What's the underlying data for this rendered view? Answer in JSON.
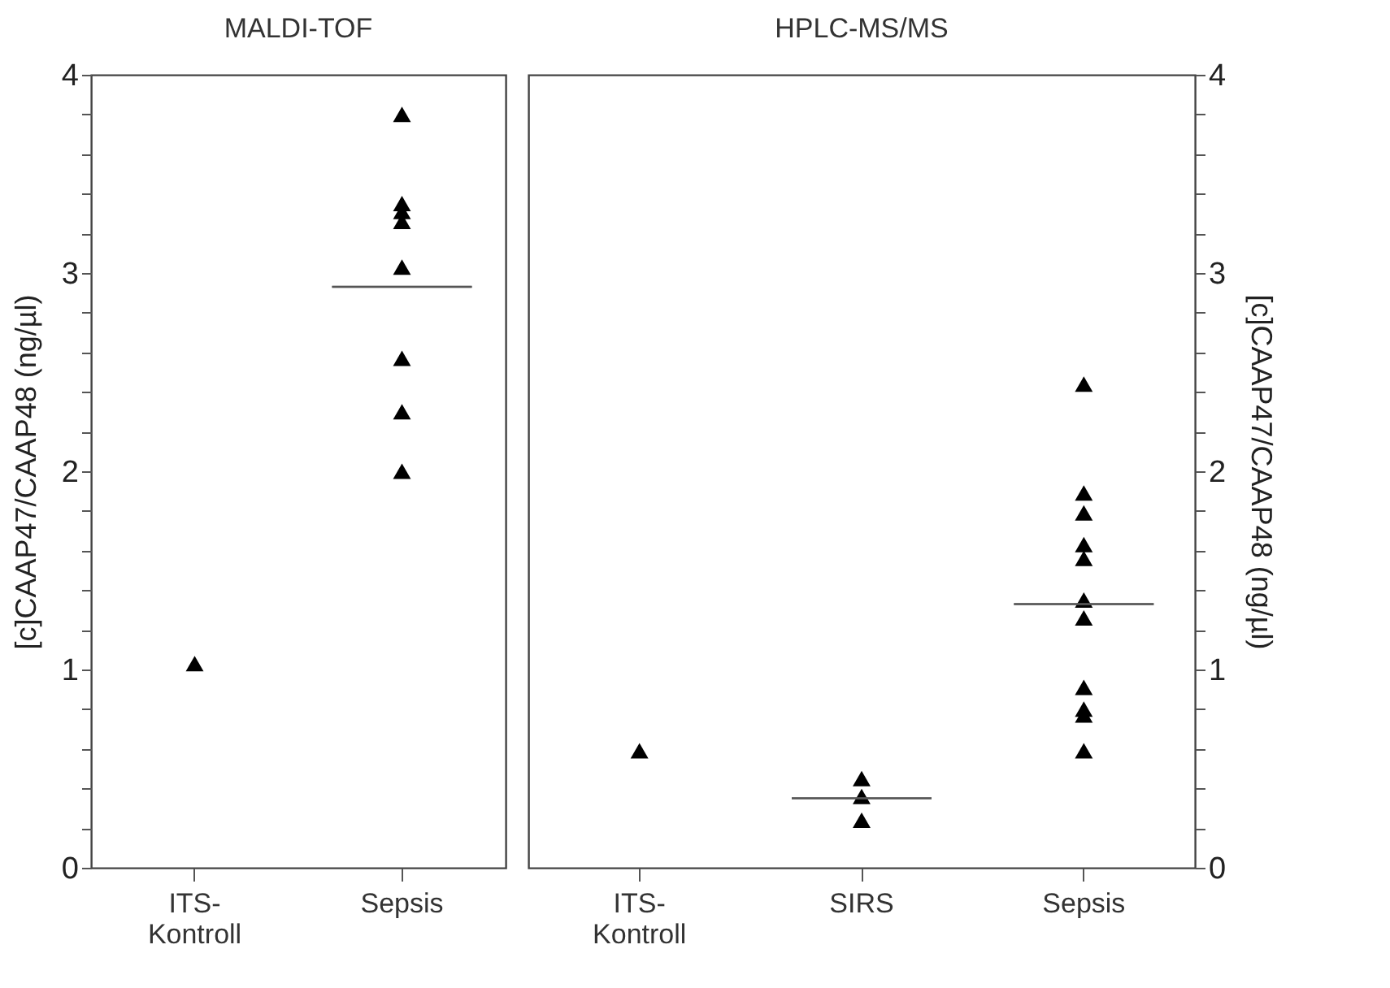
{
  "chart_data": [
    {
      "type": "scatter",
      "title": "MALDI-TOF",
      "ylabel": "[c]CAAP47/CAAP48 (ng/µl)",
      "categories": [
        "ITS-\nKontroll",
        "Sepsis"
      ],
      "ylim": [
        0,
        4
      ],
      "yticks": [
        0,
        {
          "value": 0.2,
          "label": null
        },
        {
          "value": 0.4,
          "label": null
        },
        {
          "value": 0.6,
          "label": null
        },
        {
          "value": 0.8,
          "label": null
        },
        1,
        {
          "value": 1.2,
          "label": null
        },
        {
          "value": 1.4,
          "label": null
        },
        {
          "value": 1.6,
          "label": null
        },
        {
          "value": 1.8,
          "label": null
        },
        2,
        {
          "value": 2.2,
          "label": null
        },
        {
          "value": 2.4,
          "label": null
        },
        {
          "value": 2.6,
          "label": null
        },
        {
          "value": 2.8,
          "label": null
        },
        3,
        {
          "value": 3.2,
          "label": null
        },
        {
          "value": 3.4,
          "label": null
        },
        {
          "value": 3.6,
          "label": null
        },
        {
          "value": 3.8,
          "label": null
        },
        4
      ],
      "marker": "triangle",
      "grid": false,
      "series": [
        {
          "color": "#000000",
          "x": [
            "ITS-\nKontroll",
            "Sepsis",
            "Sepsis",
            "Sepsis",
            "Sepsis",
            "Sepsis",
            "Sepsis",
            "Sepsis",
            "Sepsis"
          ],
          "values": [
            1.03,
            3.8,
            3.35,
            3.31,
            3.26,
            3.03,
            2.57,
            2.3,
            2.0
          ]
        },
        {
          "type": "box",
          "color": "#555555",
          "boxes": [
            null,
            {
              "low": 2.93,
              "q1": 2.93,
              "median": 2.93,
              "q3": 2.93,
              "high": 2.93
            }
          ]
        }
      ]
    },
    {
      "type": "scatter",
      "title": "HPLC-MS/MS",
      "y2label": "[c]CAAP47/CAAP48 (ng/µl)",
      "categories": [
        "ITS-\nKontroll",
        "SIRS",
        "Sepsis"
      ],
      "y2lim": [
        0,
        4
      ],
      "y2ticks": [
        0,
        {
          "value": 0.2,
          "label": null
        },
        {
          "value": 0.4,
          "label": null
        },
        {
          "value": 0.6,
          "label": null
        },
        {
          "value": 0.8,
          "label": null
        },
        1,
        {
          "value": 1.2,
          "label": null
        },
        {
          "value": 1.4,
          "label": null
        },
        {
          "value": 1.6,
          "label": null
        },
        {
          "value": 1.8,
          "label": null
        },
        2,
        {
          "value": 2.2,
          "label": null
        },
        {
          "value": 2.4,
          "label": null
        },
        {
          "value": 2.6,
          "label": null
        },
        {
          "value": 2.8,
          "label": null
        },
        3,
        {
          "value": 3.2,
          "label": null
        },
        {
          "value": 3.4,
          "label": null
        },
        {
          "value": 3.6,
          "label": null
        },
        {
          "value": 3.8,
          "label": null
        },
        4
      ],
      "marker": "triangle",
      "grid": false,
      "series": [
        {
          "axis": "y2",
          "color": "#000000",
          "x": [
            "ITS-\nKontroll",
            "SIRS",
            "SIRS",
            "SIRS",
            "Sepsis",
            "Sepsis",
            "Sepsis",
            "Sepsis",
            "Sepsis",
            "Sepsis",
            "Sepsis",
            "Sepsis",
            "Sepsis",
            "Sepsis",
            "Sepsis"
          ],
          "values": [
            0.59,
            0.45,
            0.36,
            0.24,
            2.44,
            1.89,
            1.79,
            1.63,
            1.56,
            1.35,
            1.26,
            0.91,
            0.8,
            0.77,
            0.59
          ]
        },
        {
          "type": "box",
          "axis": "y2",
          "color": "#555555",
          "boxes": [
            null,
            {
              "low": 0.35,
              "q1": 0.35,
              "median": 0.35,
              "q3": 0.35,
              "high": 0.35
            },
            {
              "low": 1.33,
              "q1": 1.33,
              "median": 1.33,
              "q3": 1.33,
              "high": 1.33
            }
          ]
        }
      ]
    }
  ]
}
